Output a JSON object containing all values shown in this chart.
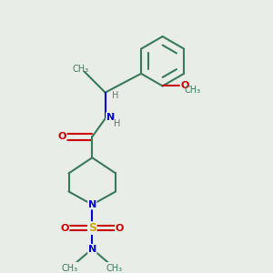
{
  "background_color": "#e8ede8",
  "bond_color": "#3a7a5a",
  "bond_width": 1.5,
  "figsize": [
    3.0,
    3.0
  ],
  "dpi": 100,
  "colors": {
    "teal": "#3a7a5a",
    "red": "#cc0000",
    "blue": "#0000cc",
    "yellow": "#ccaa00",
    "gray": "#707070"
  },
  "layout": {
    "xlim": [
      0,
      1
    ],
    "ylim": [
      0,
      1
    ]
  }
}
